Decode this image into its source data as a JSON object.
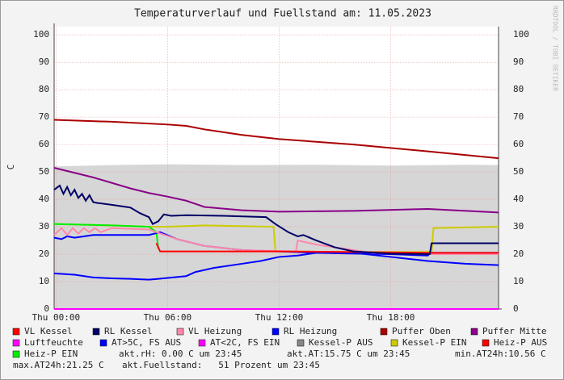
{
  "chart_data": {
    "type": "line",
    "title": "Temperaturverlauf und Fuellstand am: 11.05.2023",
    "y_label": "C",
    "watermark": "RRDTOOL / TOBI OETIKER",
    "xlim": [
      -0.1,
      23.8
    ],
    "ylim": [
      0,
      103
    ],
    "xticks": [
      {
        "value": 0,
        "label": "Thu 00:00"
      },
      {
        "value": 6,
        "label": "Thu 06:00"
      },
      {
        "value": 12,
        "label": "Thu 12:00"
      },
      {
        "value": 18,
        "label": "Thu 18:00"
      }
    ],
    "yticks": [
      0,
      10,
      20,
      30,
      40,
      50,
      60,
      70,
      80,
      90,
      100
    ],
    "grid": true,
    "area": {
      "color": "#d6d6d6",
      "x": [
        -0.1,
        3,
        6,
        10,
        14,
        18,
        22,
        23.8
      ],
      "values": [
        52,
        52.5,
        52.8,
        52.5,
        52.6,
        52.3,
        52.6,
        52.5
      ]
    },
    "series": [
      {
        "name": "VL Kessel",
        "color": "#ff0000",
        "x": [
          5.4,
          5.6,
          8,
          12,
          16,
          20,
          23.8
        ],
        "values": [
          24,
          21,
          21,
          21,
          20.8,
          20.5,
          20.5
        ]
      },
      {
        "name": "RL Kessel",
        "color": "#000066",
        "x": [
          -0.1,
          0.2,
          0.4,
          0.6,
          0.8,
          1.0,
          1.2,
          1.4,
          1.6,
          1.8,
          2.0,
          2.2,
          3,
          4,
          4.5,
          5,
          5.2,
          5.5,
          5.8,
          6.2,
          7,
          9,
          11.3,
          11.8,
          12.5,
          13,
          13.3,
          14,
          15,
          16,
          18,
          20.1,
          20.2,
          23.8
        ],
        "values": [
          43.5,
          45,
          42,
          44.5,
          41.5,
          43.5,
          40.5,
          42,
          39.5,
          41.5,
          39,
          38.7,
          38,
          37,
          35,
          33.5,
          31,
          32,
          34.5,
          34,
          34.2,
          34,
          33.5,
          31,
          28,
          26.5,
          27,
          25,
          22.5,
          21,
          20.2,
          20,
          24,
          24
        ]
      },
      {
        "name": "VL Heizung",
        "color": "#ff88aa",
        "x": [
          -0.1,
          0.3,
          0.6,
          0.9,
          1.2,
          1.5,
          1.8,
          2.1,
          2.4,
          3,
          5,
          5.4,
          6.5,
          8,
          10,
          12.9,
          13,
          14,
          15.5,
          17,
          20,
          23.8
        ],
        "values": [
          27,
          29.5,
          27,
          29.5,
          27.5,
          29.5,
          28,
          29.5,
          28,
          29.5,
          29,
          28,
          25.5,
          23,
          21.5,
          21,
          25,
          23.5,
          22,
          20.5,
          20,
          20
        ]
      },
      {
        "name": "RL Heizung",
        "color": "#0000ff",
        "x": [
          -0.1,
          1,
          2,
          3,
          4,
          5,
          5.5,
          7,
          7.5,
          8.5,
          10,
          11,
          12,
          13,
          14,
          16,
          18,
          20,
          22,
          23.8
        ],
        "values": [
          13,
          12.5,
          11.5,
          11.2,
          11,
          10.7,
          11,
          12,
          13.5,
          15,
          16.5,
          17.5,
          19,
          19.5,
          20.5,
          20.5,
          19,
          17.5,
          16.5,
          16
        ]
      },
      {
        "name": "Puffer Oben",
        "color": "#aa0000",
        "x": [
          -0.1,
          3,
          6,
          7,
          8,
          10,
          12,
          16,
          20,
          23.8
        ],
        "values": [
          69,
          68.3,
          67.3,
          66.8,
          65.5,
          63.5,
          62,
          60,
          57.5,
          55
        ]
      },
      {
        "name": "Puffer Mitte",
        "color": "#880088",
        "x": [
          -0.1,
          2,
          4,
          5,
          6,
          7,
          8,
          10,
          12,
          16,
          20,
          23.8
        ],
        "values": [
          51.5,
          48,
          44,
          42.3,
          41,
          39.5,
          37.2,
          36,
          35.5,
          35.8,
          36.5,
          35.2
        ]
      },
      {
        "name": "Luftfeuchte",
        "color": "#ff00ff",
        "x": [
          -0.1,
          23.8
        ],
        "values": [
          0,
          0
        ]
      },
      {
        "name": "AT>5C, FS AUS",
        "color": "#0000ff",
        "x": [
          -0.1,
          0.3,
          0.6,
          1,
          1.5,
          2,
          4,
          5,
          5.3,
          5.6,
          6.5,
          8,
          10,
          12,
          14,
          16,
          18,
          20,
          20.1,
          23.8
        ],
        "values": [
          26,
          25.5,
          26.5,
          26,
          26.5,
          27,
          27,
          27,
          27.5,
          28,
          25.5,
          23,
          21.5,
          21,
          20.5,
          20.2,
          20,
          19.5,
          20.5,
          20.5
        ]
      },
      {
        "name": "AT<2C, FS EIN",
        "color": "#ff00ff",
        "x": [],
        "values": []
      },
      {
        "name": "Kessel-P AUS",
        "color": "#888888",
        "x": [],
        "values": []
      },
      {
        "name": "Kessel-P EIN",
        "color": "#cccc00",
        "x": [
          -0.1,
          3,
          5,
          6,
          8,
          11.7,
          11.8,
          16,
          20.2,
          20.3,
          23.8
        ],
        "values": [
          31,
          30.5,
          30,
          30,
          30.5,
          30,
          21,
          20.8,
          20.8,
          29.5,
          30
        ]
      },
      {
        "name": "Heiz-P AUS",
        "color": "#ff0000",
        "x": [],
        "values": []
      },
      {
        "name": "Heiz-P EIN",
        "color": "#00ee00",
        "x": [
          -0.1,
          3,
          5,
          5.4,
          5.5
        ],
        "values": [
          31,
          30.5,
          30,
          28,
          22
        ]
      }
    ],
    "notes": [
      "akt.rH: 0.00 C um 23:45",
      "akt.AT:15.75 C um 23:45",
      "min.AT24h:10.56 C",
      "max.AT24h:21.25 C",
      "akt.Fuellstand:   51 Prozent um 23:45"
    ]
  }
}
